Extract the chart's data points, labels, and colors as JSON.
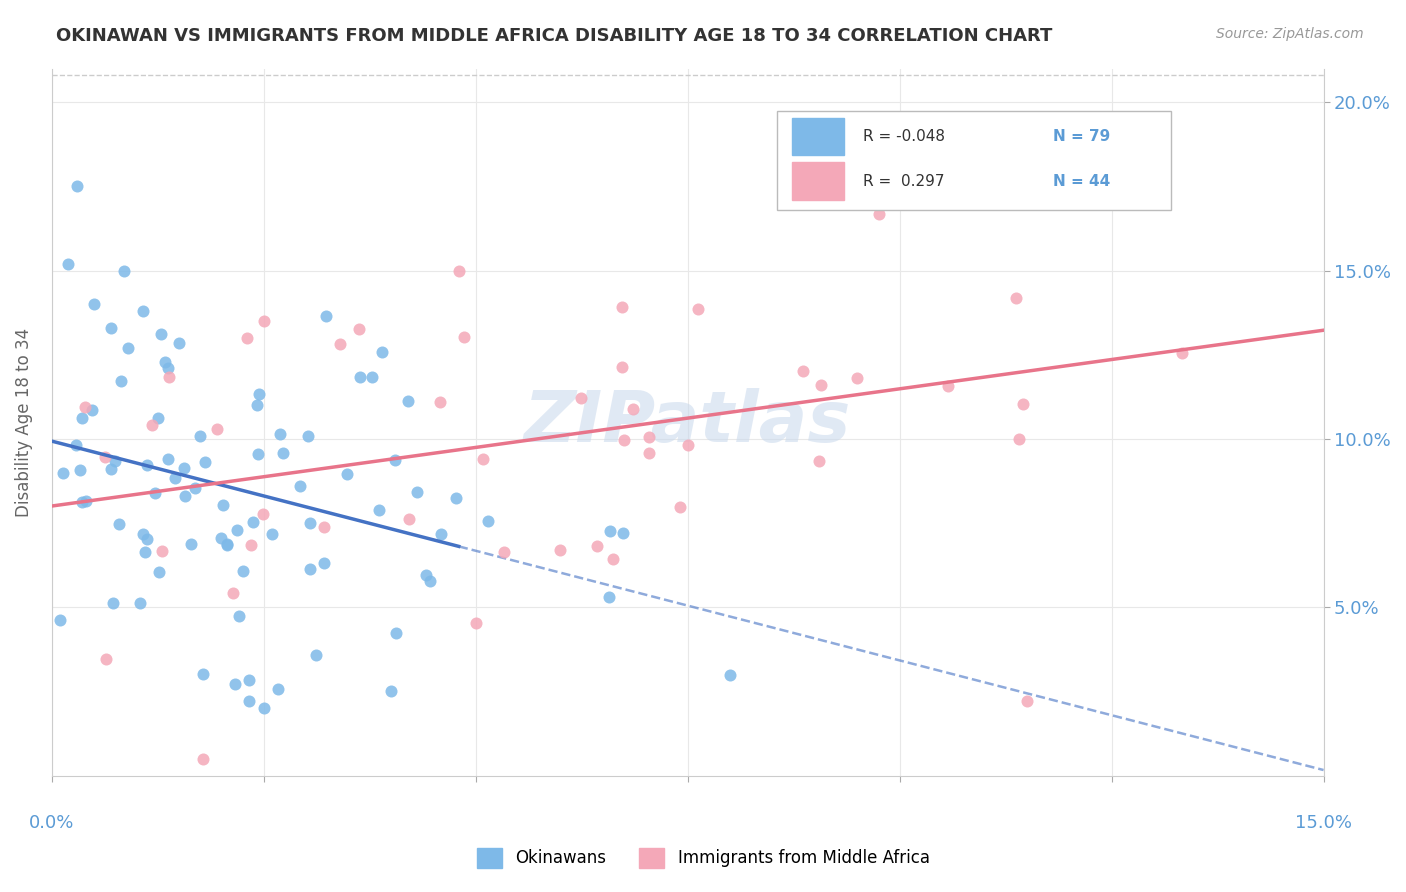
{
  "title": "OKINAWAN VS IMMIGRANTS FROM MIDDLE AFRICA DISABILITY AGE 18 TO 34 CORRELATION CHART",
  "source": "Source: ZipAtlas.com",
  "ylabel": "Disability Age 18 to 34",
  "xlim": [
    0.0,
    0.15
  ],
  "ylim": [
    0.0,
    0.21
  ],
  "ytick_positions": [
    0.05,
    0.1,
    0.15,
    0.2
  ],
  "ytick_labels": [
    "5.0%",
    "10.0%",
    "15.0%",
    "20.0%"
  ],
  "xtick_positions": [
    0.0,
    0.025,
    0.05,
    0.075,
    0.1,
    0.125,
    0.15
  ],
  "color_blue": "#7EB9E8",
  "color_pink": "#F4A8B8",
  "color_blue_line": "#4472C4",
  "color_pink_line": "#E8748A",
  "color_tick_label": "#5B9BD5",
  "watermark": "ZIPatlas",
  "legend_r1": "R = -0.048",
  "legend_n1": "N = 79",
  "legend_r2": "R =  0.297",
  "legend_n2": "N = 44",
  "blue_N": 79,
  "pink_N": 44,
  "blue_R": -0.048,
  "pink_R": 0.297
}
